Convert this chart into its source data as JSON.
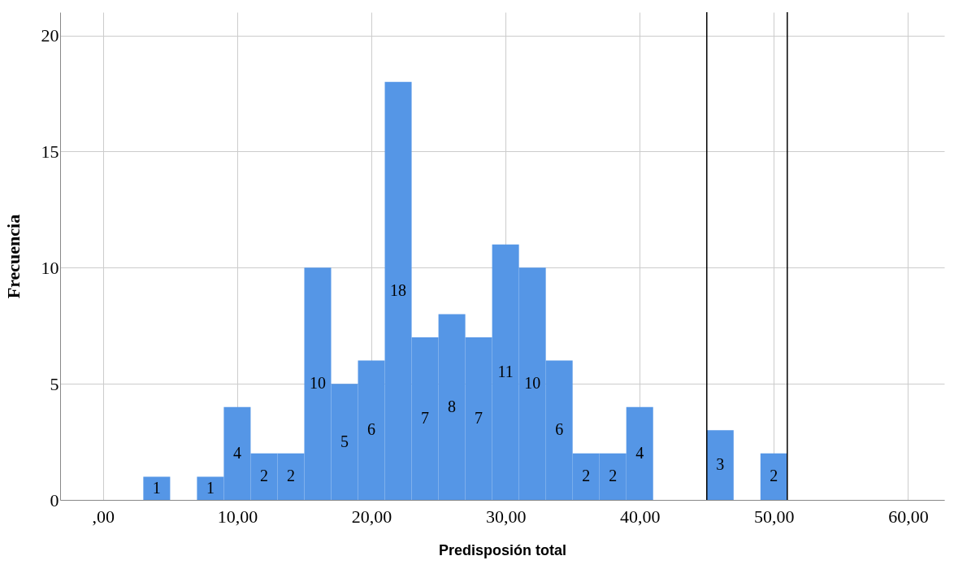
{
  "chart_data": {
    "type": "histogram",
    "xlabel": "Predisposión total",
    "ylabel": "Frecuencia",
    "bins": [
      3,
      5,
      7,
      9,
      11,
      13,
      15,
      17,
      19,
      21,
      23,
      25,
      27,
      29,
      31,
      33,
      35,
      37,
      39,
      41,
      43,
      45,
      47,
      49,
      51
    ],
    "values": [
      1,
      0,
      1,
      4,
      2,
      2,
      10,
      5,
      6,
      18,
      7,
      8,
      7,
      11,
      10,
      6,
      2,
      2,
      4,
      0,
      0,
      3,
      0,
      2
    ],
    "value_labels": [
      "1",
      null,
      "1",
      "4",
      "2",
      "2",
      "10",
      "5",
      "6",
      "18",
      "7",
      "8",
      "7",
      "11",
      "10",
      "6",
      "2",
      "2",
      "4",
      null,
      null,
      "3",
      null,
      "2"
    ],
    "color": "#5596e6",
    "xlim": [
      -3.2,
      62.7
    ],
    "ylim": [
      0,
      21
    ],
    "xticks": [
      {
        "value": 0,
        "label": ",00"
      },
      {
        "value": 10,
        "label": "10,00"
      },
      {
        "value": 20,
        "label": "20,00"
      },
      {
        "value": 30,
        "label": "30,00"
      },
      {
        "value": 40,
        "label": "40,00"
      },
      {
        "value": 50,
        "label": "50,00"
      },
      {
        "value": 60,
        "label": "60,00"
      }
    ],
    "yticks": [
      0,
      5,
      10,
      15,
      20
    ],
    "grid": true,
    "ref_lines": [
      {
        "axis": "x",
        "value": 45,
        "label": null,
        "color": "#000000"
      },
      {
        "axis": "x",
        "value": 51,
        "label": null,
        "color": "#000000"
      }
    ]
  }
}
